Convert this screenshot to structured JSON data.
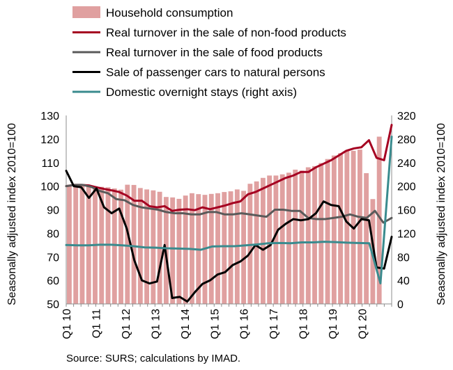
{
  "chart_data": {
    "type": "bar+line",
    "title": "",
    "y_left_label": "Seasonally adjusted index 2010=100",
    "y_right_label": "Seasonally adjusted index 2010=100",
    "y_left_lim": [
      50,
      130
    ],
    "y_left_ticks": [
      50,
      60,
      70,
      80,
      90,
      100,
      110,
      120,
      130
    ],
    "y_right_lim": [
      0,
      320
    ],
    "y_right_ticks": [
      0,
      40,
      80,
      120,
      160,
      200,
      240,
      280,
      320
    ],
    "x_tick_labels": [
      "Q1 10",
      "Q1 11",
      "Q1 12",
      "Q1 13",
      "Q1 14",
      "Q1 15",
      "Q1 16",
      "Q1 17",
      "Q1 18",
      "Q1 19",
      "Q1 20"
    ],
    "x_periods_per_year": 12,
    "x_start": "2010-01",
    "grid": false,
    "legend_position": "top",
    "series": [
      {
        "name": "Household consumption",
        "kind": "bar",
        "axis": "left",
        "color": "#e0a0a0",
        "values": [
          100.5,
          100.0,
          100.3,
          99.8,
          100.0,
          99.7,
          99.5,
          99.0,
          98.5,
          100.6,
          100.5,
          99.2,
          98.6,
          98.2,
          97.6,
          95.4,
          95.2,
          94.6,
          96.0,
          97.0,
          96.6,
          96.3,
          96.7,
          97.0,
          97.5,
          97.8,
          98.6,
          98.0,
          101.0,
          102.0,
          103.5,
          104.5,
          104.5,
          105.0,
          105.7,
          107.0,
          106.6,
          108.0,
          108.5,
          109.8,
          111.5,
          113.0,
          114.0,
          115.0,
          115.0,
          115.5,
          105.5,
          94.5,
          121.0
        ]
      },
      {
        "name": "Real turnover in the sale of non-food products",
        "kind": "line",
        "axis": "left",
        "color": "#a50021",
        "values": [
          100.0,
          100.5,
          100.5,
          100.3,
          99.5,
          98.8,
          98.2,
          97.5,
          96.0,
          93.8,
          93.8,
          91.5,
          91.0,
          91.5,
          89.5,
          90.0,
          90.2,
          89.8,
          91.0,
          90.2,
          91.0,
          91.8,
          92.8,
          93.5,
          96.5,
          97.5,
          99.0,
          100.5,
          102.0,
          103.5,
          104.5,
          106.0,
          106.0,
          108.0,
          109.5,
          111.0,
          113.0,
          115.0,
          116.0,
          116.5,
          119.5,
          112.0,
          111.0,
          126.0
        ]
      },
      {
        "name": "Real turnover in the sale of food products",
        "kind": "line",
        "axis": "left",
        "color": "#5a5a5a",
        "values": [
          100.0,
          100.5,
          100.5,
          99.7,
          98.0,
          97.0,
          94.5,
          94.0,
          92.0,
          91.0,
          90.5,
          90.0,
          89.0,
          88.5,
          88.5,
          88.0,
          88.0,
          89.0,
          89.0,
          88.0,
          88.0,
          88.5,
          88.0,
          87.5,
          87.0,
          90.0,
          90.0,
          89.5,
          89.5,
          86.5,
          86.0,
          86.0,
          86.5,
          87.0,
          88.0,
          87.0,
          86.5,
          89.5,
          84.5,
          86.5
        ]
      },
      {
        "name": "Sale of passenger cars to natural persons",
        "kind": "line",
        "axis": "left",
        "color": "#000000",
        "values": [
          106.5,
          100.0,
          99.5,
          95.0,
          99.0,
          91.0,
          88.5,
          90.5,
          82.0,
          68.5,
          60.0,
          58.7,
          59.5,
          75.0,
          52.5,
          53.0,
          51.0,
          55.0,
          58.5,
          60.0,
          62.5,
          63.5,
          66.5,
          68.0,
          70.5,
          75.0,
          73.0,
          75.0,
          81.5,
          84.0,
          86.0,
          85.5,
          86.0,
          88.5,
          93.5,
          92.0,
          91.5,
          85.0,
          82.0,
          86.0,
          85.5,
          65.5,
          65.0,
          78.5
        ]
      },
      {
        "name": "Domestic overnight stays (right axis)",
        "kind": "line",
        "axis": "right",
        "color": "#3a8b8e",
        "values": [
          100.0,
          99.5,
          99.5,
          100.5,
          100.5,
          99.5,
          98.0,
          96.0,
          95.5,
          94.5,
          94.0,
          93.5,
          92.0,
          97.5,
          98.0,
          98.0,
          99.5,
          101.0,
          103.0,
          103.5,
          103.0,
          104.5,
          104.5,
          105.5,
          105.0,
          104.0,
          103.5,
          103.0,
          35.0,
          284.0
        ]
      }
    ]
  },
  "source": "Source: SURS; calculations by IMAD."
}
